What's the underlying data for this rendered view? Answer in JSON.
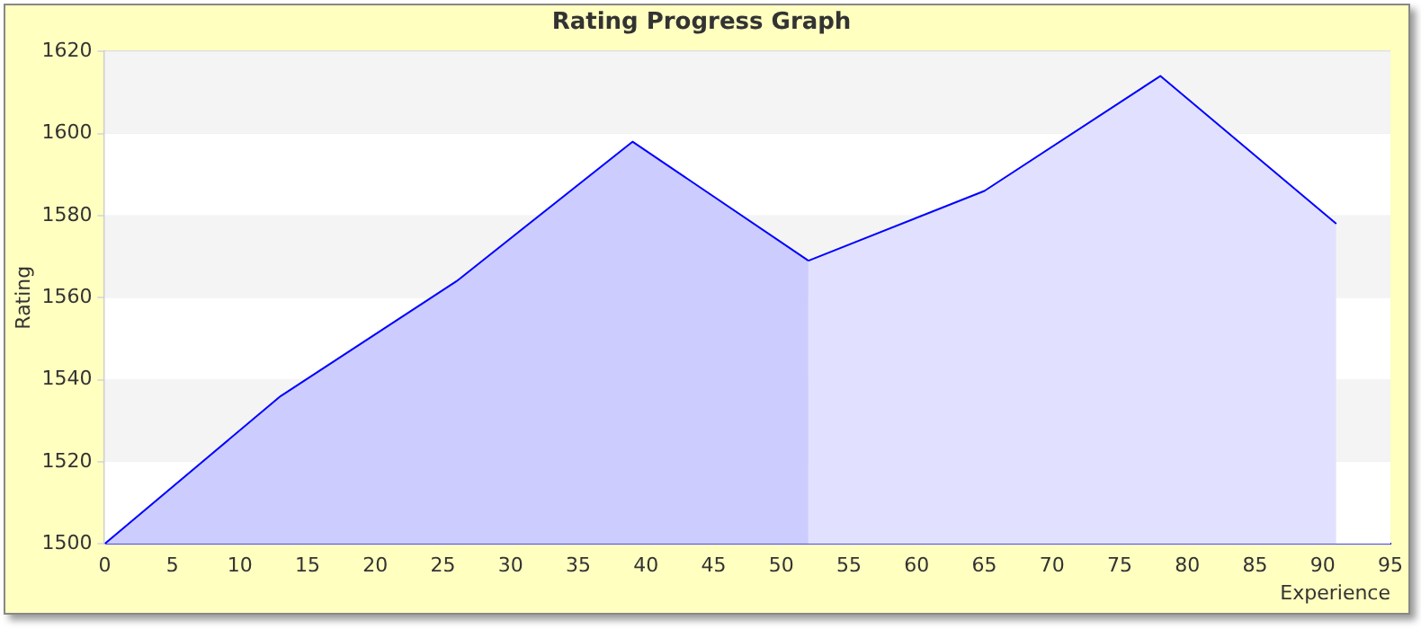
{
  "chart_data": {
    "type": "area",
    "title": "Rating Progress Graph",
    "xlabel": "Experience",
    "ylabel": "Rating",
    "series": [
      {
        "color": "#ccccff",
        "x": [
          0,
          13,
          26,
          39,
          52
        ],
        "values": [
          1500,
          1536,
          1564,
          1598,
          1569
        ]
      },
      {
        "color": "#e1e1ff",
        "x": [
          52,
          65,
          78,
          91
        ],
        "values": [
          1569,
          1586,
          1614,
          1578
        ]
      }
    ],
    "xlim": [
      0,
      95
    ],
    "xticks": [
      0,
      5,
      10,
      15,
      20,
      25,
      30,
      35,
      40,
      45,
      50,
      55,
      60,
      65,
      70,
      75,
      80,
      85,
      90,
      95
    ],
    "ylim": [
      1500,
      1620
    ],
    "yticks": [
      1500,
      1520,
      1540,
      1560,
      1580,
      1600,
      1620
    ],
    "grid": "y",
    "legend": false,
    "marker": "none",
    "line_style": "solid"
  }
}
